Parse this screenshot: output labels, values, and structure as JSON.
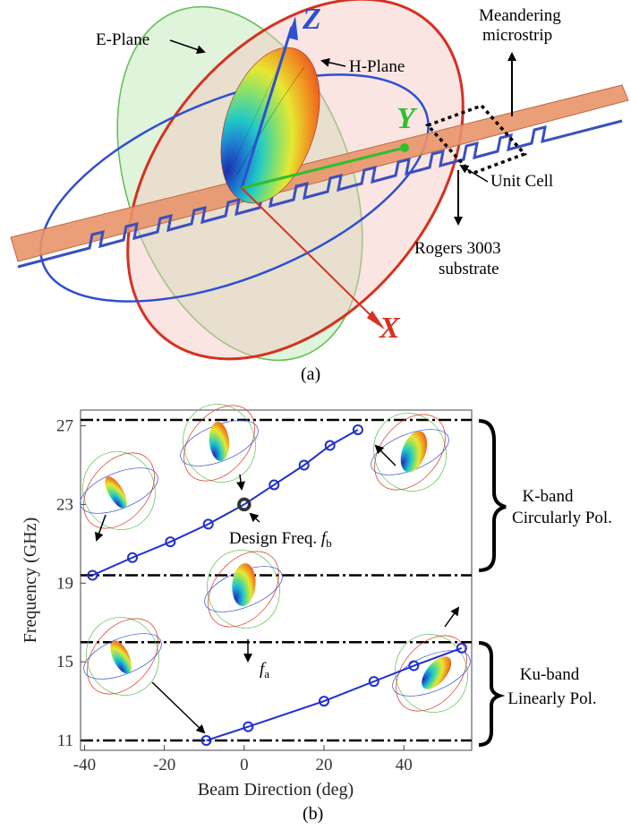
{
  "figure_a": {
    "labels": {
      "e_plane": "E-Plane",
      "h_plane": "H-Plane",
      "meander_line1": "Meandering",
      "meander_line2": "microstrip",
      "unit_cell": "Unit Cell",
      "rogers_line1": "Rogers 3003",
      "rogers_line2": "substrate"
    },
    "axes": {
      "z": "Z",
      "y": "Y",
      "x": "X"
    },
    "caption": "(a)",
    "colors": {
      "substrate": "#e8956a",
      "microstrip": "#3a4fc0",
      "e_plane": "#5fbf4f",
      "h_plane": "#d7301f",
      "blue_ring": "#2e4fd0",
      "z_axis": "#2e4fd0",
      "y_axis": "#2fbf2f",
      "x_axis": "#d7301f"
    }
  },
  "figure_b": {
    "caption": "(b)",
    "annotations": {
      "design_freq": "Design Freq. ",
      "design_sym": "f",
      "design_sub": "b",
      "fa_sym": "f",
      "fa_sub": "a"
    },
    "bands": [
      {
        "line1": "K-band",
        "line2": "Circularly Pol."
      },
      {
        "line1": "Ku-band",
        "line2": "Linearly Pol."
      }
    ],
    "highlight_point": {
      "x": 0,
      "y": 23
    }
  },
  "chart_data": {
    "type": "line",
    "xlabel": "Beam Direction (deg)",
    "ylabel": "Frequency (GHz)",
    "xlim": [
      -41,
      57
    ],
    "ylim": [
      10.5,
      27.8
    ],
    "x_ticks": [
      -40,
      -20,
      0,
      20,
      40
    ],
    "y_ticks": [
      11,
      15,
      19,
      23,
      27
    ],
    "reference_lines_y": [
      27.3,
      19.4,
      16.0,
      11.0
    ],
    "series": [
      {
        "x": [
          -38,
          -28,
          -18.5,
          -9,
          0,
          7.5,
          15,
          21.5,
          28.5
        ],
        "y": [
          19.4,
          20.3,
          21.1,
          22.0,
          23.0,
          24.0,
          25.0,
          26.0,
          26.8
        ],
        "color": "#1f2fd0"
      },
      {
        "x": [
          -9.5,
          1,
          20,
          32.5,
          42.5,
          54.5
        ],
        "y": [
          11.0,
          11.7,
          13.0,
          14.0,
          14.8,
          15.7
        ],
        "color": "#1f2fd0"
      }
    ]
  }
}
